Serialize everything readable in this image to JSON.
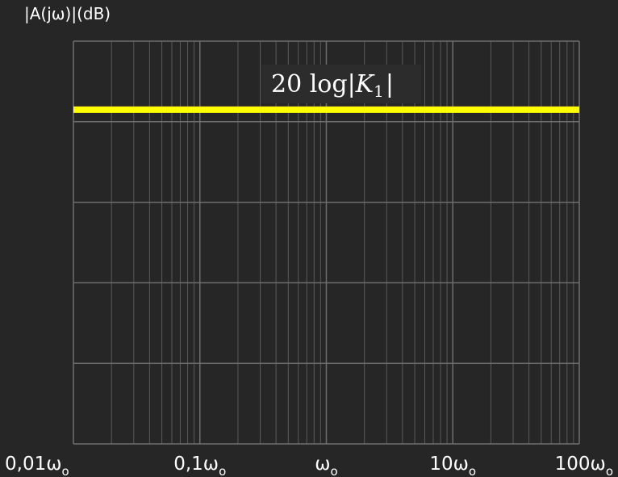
{
  "chart_data": {
    "type": "line",
    "xscale": "log",
    "xlim": [
      0.01,
      100
    ],
    "xunit": "ωo",
    "x_ticks": [
      {
        "value": 0.01,
        "label": "0,01ω",
        "sub": "o"
      },
      {
        "value": 0.1,
        "label": "0,1ω",
        "sub": "o"
      },
      {
        "value": 1,
        "label": "ω",
        "sub": "o"
      },
      {
        "value": 10,
        "label": "10ω",
        "sub": "o"
      },
      {
        "value": 100,
        "label": "100ω",
        "sub": "o"
      }
    ],
    "ylabel": "|A(jω)|(dB)",
    "y_grid_count": 5,
    "grid": true,
    "series": [
      {
        "x": [
          0.01,
          100
        ],
        "y": [
          1,
          1
        ],
        "color": "#ffff00"
      }
    ],
    "annotation": {
      "prefix": "20 log|",
      "var": "K",
      "sub": "1",
      "suffix": "|"
    }
  }
}
